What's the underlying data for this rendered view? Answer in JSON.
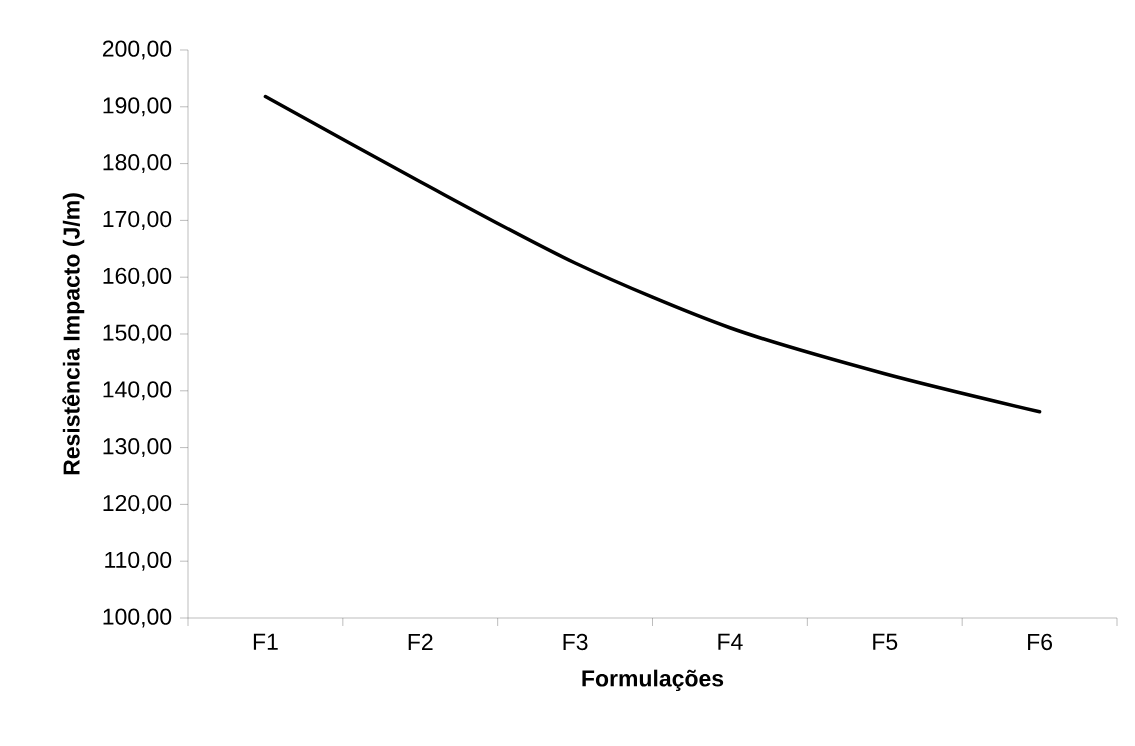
{
  "chart_data": {
    "type": "line",
    "xlabel": "Formulações",
    "ylabel": "Resistência Impacto (J/m)",
    "categories": [
      "F1",
      "F2",
      "F3",
      "F4",
      "F5",
      "F6"
    ],
    "series": [
      {
        "color": "#000000",
        "values": [
          191.8,
          176.8,
          162.5,
          151.1,
          143.0,
          136.3
        ]
      }
    ],
    "ylim": [
      100,
      200
    ],
    "yticks": [
      {
        "value": 100,
        "label": "100,00"
      },
      {
        "value": 110,
        "label": "110,00"
      },
      {
        "value": 120,
        "label": "120,00"
      },
      {
        "value": 130,
        "label": "130,00"
      },
      {
        "value": 140,
        "label": "140,00"
      },
      {
        "value": 150,
        "label": "150,00"
      },
      {
        "value": 160,
        "label": "160,00"
      },
      {
        "value": 170,
        "label": "170,00"
      },
      {
        "value": 180,
        "label": "180,00"
      },
      {
        "value": 190,
        "label": "190,00"
      },
      {
        "value": 200,
        "label": "200,00"
      }
    ],
    "grid": false,
    "marker": "none",
    "line_style": "solid"
  }
}
